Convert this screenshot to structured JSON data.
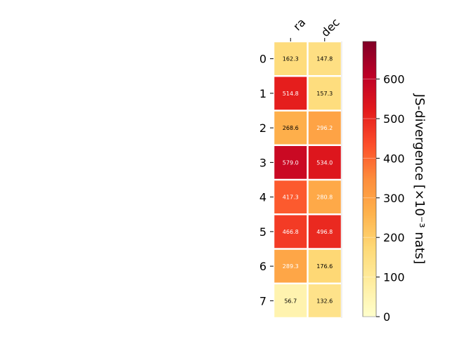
{
  "chart_data": {
    "type": "heatmap",
    "columns": [
      "ra",
      "dec"
    ],
    "rows": [
      "0",
      "1",
      "2",
      "3",
      "4",
      "5",
      "6",
      "7"
    ],
    "values": [
      [
        162.3,
        147.8
      ],
      [
        514.8,
        157.3
      ],
      [
        268.6,
        296.2
      ],
      [
        579.0,
        534.0
      ],
      [
        417.3,
        280.8
      ],
      [
        466.8,
        496.8
      ],
      [
        289.3,
        176.6
      ],
      [
        56.7,
        132.6
      ]
    ],
    "cell_labels": [
      [
        "162.3",
        "147.8"
      ],
      [
        "514.8",
        "157.3"
      ],
      [
        "268.6",
        "296.2"
      ],
      [
        "579.0",
        "534.0"
      ],
      [
        "417.3",
        "280.8"
      ],
      [
        "466.8",
        "496.8"
      ],
      [
        "289.3",
        "176.6"
      ],
      [
        "56.7",
        "132.6"
      ]
    ],
    "colorbar": {
      "label": "JS-divergence [×10⁻³ nats]",
      "ticks": [
        0,
        100,
        200,
        300,
        400,
        500,
        600
      ],
      "range": [
        0,
        695
      ],
      "colormap": "YlOrRd"
    }
  }
}
